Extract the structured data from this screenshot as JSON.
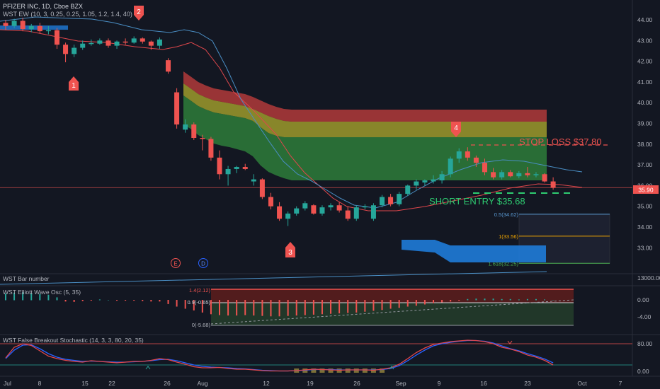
{
  "header": {
    "symbol": "PFIZER INC, 1D, Cboe BZX",
    "wst_ew_label": "WST EW (10, 3, 0.25, 0.25, 1.05, 1.2, 1.4, 40)"
  },
  "annotations": {
    "stop_loss": "STOP LOSS $37.80",
    "short_entry": "SHORT ENTRY $35.68",
    "wave_markers": [
      "1",
      "2",
      "3",
      "4"
    ],
    "event_e": "E",
    "event_d": "D",
    "fib_05": "0.5(34.62)",
    "fib_1": "1(33.56)",
    "fib_1618": "1.618(32.25)",
    "price_badge": "35.90"
  },
  "panels": {
    "bar_number": {
      "label": "WST Bar number",
      "axis_label": "13000.00"
    },
    "elliott": {
      "label": "WST Elliott Wave Osc (5, 35)",
      "ref_14": "1.4(2.12)",
      "ref_09": "0.9(-0.65)",
      "ref_0": "0(-5.68)",
      "axis": [
        "0.00",
        "-4.00"
      ]
    },
    "stochastic": {
      "label": "WST False Breakout Stochastic (14, 3, 3, 80, 20, 35)",
      "axis": [
        "80.00",
        "0.00"
      ]
    }
  },
  "xaxis": {
    "labels": [
      "Jul",
      "8",
      "15",
      "22",
      "26",
      "Aug",
      "12",
      "19",
      "26",
      "Sep",
      "9",
      "16",
      "23",
      "Oct",
      "7"
    ]
  },
  "colors": {
    "bull": "#26a69a",
    "bear": "#ef5350",
    "background": "#131722",
    "ma_red": "#e0474c",
    "ma_blue": "#4a8ec4"
  },
  "chart_data": {
    "type": "candlestick",
    "y_axis_ticks": [
      "44.00",
      "43.00",
      "42.00",
      "41.00",
      "40.00",
      "39.00",
      "38.00",
      "37.00",
      "36.00",
      "35.00",
      "34.00",
      "33.00"
    ],
    "ylim": [
      32.2,
      44.4
    ],
    "stop_loss": 37.8,
    "short_entry": 35.68,
    "last_price": 35.9,
    "fib_targets": [
      34.62,
      33.56,
      32.25
    ],
    "candles": [
      {
        "o": 43.85,
        "h": 44.0,
        "l": 43.5,
        "c": 43.7
      },
      {
        "o": 43.7,
        "h": 44.05,
        "l": 43.6,
        "c": 43.95
      },
      {
        "o": 43.95,
        "h": 44.1,
        "l": 43.45,
        "c": 43.55
      },
      {
        "o": 43.55,
        "h": 43.8,
        "l": 43.4,
        "c": 43.7
      },
      {
        "o": 43.7,
        "h": 43.85,
        "l": 43.35,
        "c": 43.45
      },
      {
        "o": 43.45,
        "h": 43.7,
        "l": 43.3,
        "c": 43.5
      },
      {
        "o": 43.5,
        "h": 43.6,
        "l": 42.6,
        "c": 42.8
      },
      {
        "o": 42.8,
        "h": 42.9,
        "l": 41.95,
        "c": 42.35
      },
      {
        "o": 42.35,
        "h": 42.8,
        "l": 42.2,
        "c": 42.65
      },
      {
        "o": 42.65,
        "h": 43.0,
        "l": 42.55,
        "c": 42.85
      },
      {
        "o": 42.85,
        "h": 43.05,
        "l": 42.75,
        "c": 42.88
      },
      {
        "o": 42.85,
        "h": 43.1,
        "l": 42.8,
        "c": 43.0
      },
      {
        "o": 43.0,
        "h": 43.1,
        "l": 42.65,
        "c": 42.75
      },
      {
        "o": 42.75,
        "h": 43.0,
        "l": 42.6,
        "c": 42.95
      },
      {
        "o": 42.95,
        "h": 43.1,
        "l": 42.8,
        "c": 42.9
      },
      {
        "o": 42.9,
        "h": 43.2,
        "l": 42.85,
        "c": 43.1
      },
      {
        "o": 43.1,
        "h": 43.15,
        "l": 42.85,
        "c": 42.95
      },
      {
        "o": 42.95,
        "h": 43.0,
        "l": 42.55,
        "c": 42.75
      },
      {
        "o": 42.75,
        "h": 43.15,
        "l": 42.6,
        "c": 43.05
      },
      {
        "o": 42.05,
        "h": 42.15,
        "l": 41.4,
        "c": 41.5
      },
      {
        "o": 40.5,
        "h": 40.7,
        "l": 38.75,
        "c": 38.95
      },
      {
        "o": 38.7,
        "h": 39.2,
        "l": 38.55,
        "c": 38.95
      },
      {
        "o": 38.95,
        "h": 39.05,
        "l": 38.2,
        "c": 38.3
      },
      {
        "o": 38.3,
        "h": 38.45,
        "l": 37.7,
        "c": 38.25
      },
      {
        "o": 38.25,
        "h": 38.35,
        "l": 37.2,
        "c": 37.35
      },
      {
        "o": 37.35,
        "h": 37.7,
        "l": 36.3,
        "c": 36.55
      },
      {
        "o": 36.55,
        "h": 36.95,
        "l": 36.0,
        "c": 36.8
      },
      {
        "o": 36.8,
        "h": 36.95,
        "l": 36.6,
        "c": 36.9
      },
      {
        "o": 36.9,
        "h": 37.05,
        "l": 36.75,
        "c": 36.8
      },
      {
        "o": 36.2,
        "h": 36.55,
        "l": 36.0,
        "c": 36.3
      },
      {
        "o": 36.3,
        "h": 36.35,
        "l": 35.35,
        "c": 35.45
      },
      {
        "o": 35.45,
        "h": 35.65,
        "l": 34.85,
        "c": 35.0
      },
      {
        "o": 35.0,
        "h": 35.2,
        "l": 34.3,
        "c": 34.4
      },
      {
        "o": 34.4,
        "h": 34.75,
        "l": 34.05,
        "c": 34.65
      },
      {
        "o": 34.65,
        "h": 35.0,
        "l": 34.55,
        "c": 34.9
      },
      {
        "o": 34.9,
        "h": 35.25,
        "l": 34.8,
        "c": 35.15
      },
      {
        "o": 35.05,
        "h": 35.1,
        "l": 34.6,
        "c": 34.65
      },
      {
        "o": 34.65,
        "h": 35.05,
        "l": 34.55,
        "c": 34.95
      },
      {
        "o": 34.95,
        "h": 35.15,
        "l": 34.8,
        "c": 35.05
      },
      {
        "o": 35.05,
        "h": 35.2,
        "l": 34.7,
        "c": 34.8
      },
      {
        "o": 34.8,
        "h": 35.0,
        "l": 34.3,
        "c": 34.4
      },
      {
        "o": 34.4,
        "h": 35.05,
        "l": 34.3,
        "c": 34.95
      },
      {
        "o": 34.95,
        "h": 35.1,
        "l": 34.85,
        "c": 35.0
      },
      {
        "o": 34.4,
        "h": 35.15,
        "l": 34.3,
        "c": 35.05
      },
      {
        "o": 35.05,
        "h": 35.55,
        "l": 34.95,
        "c": 35.45
      },
      {
        "o": 35.45,
        "h": 35.6,
        "l": 35.0,
        "c": 35.1
      },
      {
        "o": 35.1,
        "h": 35.7,
        "l": 35.0,
        "c": 35.6
      },
      {
        "o": 35.6,
        "h": 36.05,
        "l": 35.5,
        "c": 36.0
      },
      {
        "o": 36.0,
        "h": 36.3,
        "l": 35.8,
        "c": 36.2
      },
      {
        "o": 36.15,
        "h": 36.3,
        "l": 36.0,
        "c": 36.25
      },
      {
        "o": 36.2,
        "h": 36.5,
        "l": 36.1,
        "c": 36.3
      },
      {
        "o": 36.25,
        "h": 36.7,
        "l": 36.1,
        "c": 36.55
      },
      {
        "o": 36.55,
        "h": 37.4,
        "l": 36.4,
        "c": 37.3
      },
      {
        "o": 37.3,
        "h": 37.8,
        "l": 37.1,
        "c": 37.65
      },
      {
        "o": 37.65,
        "h": 37.85,
        "l": 37.2,
        "c": 37.35
      },
      {
        "o": 37.35,
        "h": 37.45,
        "l": 36.9,
        "c": 37.1
      },
      {
        "o": 37.1,
        "h": 37.3,
        "l": 36.5,
        "c": 36.65
      },
      {
        "o": 36.65,
        "h": 36.85,
        "l": 36.3,
        "c": 36.4
      },
      {
        "o": 36.4,
        "h": 36.75,
        "l": 36.3,
        "c": 36.65
      },
      {
        "o": 36.65,
        "h": 36.75,
        "l": 36.4,
        "c": 36.45
      },
      {
        "o": 36.45,
        "h": 36.7,
        "l": 36.35,
        "c": 36.6
      },
      {
        "o": 36.6,
        "h": 36.9,
        "l": 36.4,
        "c": 36.5
      },
      {
        "o": 36.5,
        "h": 36.65,
        "l": 36.4,
        "c": 36.55
      },
      {
        "o": 36.55,
        "h": 36.6,
        "l": 36.15,
        "c": 36.2
      },
      {
        "o": 36.2,
        "h": 36.4,
        "l": 35.8,
        "c": 35.9
      }
    ],
    "elliott_osc": [
      1.5,
      1.7,
      1.8,
      1.6,
      1.4,
      1.2,
      0.6,
      -0.3,
      -0.4,
      -0.2,
      -0.1,
      0.1,
      0.0,
      -0.1,
      -0.1,
      -0.1,
      -0.2,
      -0.3,
      -0.3,
      -0.9,
      -1.5,
      -2.0,
      -2.4,
      -2.9,
      -3.3,
      -3.5,
      -3.6,
      -3.6,
      -3.5,
      -3.6,
      -3.7,
      -3.8,
      -3.8,
      -3.7,
      -3.6,
      -3.5,
      -3.4,
      -3.3,
      -3.2,
      -3.1,
      -3.0,
      -2.9,
      -2.7,
      -2.5,
      -2.3,
      -2.0,
      -1.8,
      -1.5,
      -1.3,
      -1.0,
      -0.7,
      -0.5,
      -0.3,
      -0.1,
      0.2,
      0.3,
      0.3,
      0.3,
      0.2,
      0.2,
      0.1,
      0.2,
      0.2,
      0.1,
      0.0
    ],
    "stoch_k": [
      40,
      70,
      80,
      75,
      60,
      45,
      38,
      33,
      30,
      28,
      32,
      30,
      28,
      26,
      28,
      30,
      30,
      33,
      38,
      35,
      28,
      22,
      15,
      12,
      12,
      13,
      10,
      8,
      8,
      6,
      4,
      3,
      3,
      3,
      4,
      6,
      8,
      7,
      6,
      5,
      6,
      6,
      6,
      5,
      8,
      12,
      22,
      38,
      55,
      68,
      78,
      82,
      86,
      88,
      90,
      89,
      86,
      80,
      70,
      65,
      58,
      48,
      42,
      33,
      20
    ],
    "stoch_d": [
      38,
      62,
      76,
      77,
      66,
      52,
      42,
      36,
      33,
      30,
      31,
      30,
      29,
      28,
      28,
      29,
      30,
      32,
      35,
      36,
      32,
      26,
      20,
      16,
      14,
      13,
      12,
      10,
      9,
      7,
      5,
      4,
      3,
      3,
      4,
      5,
      7,
      7,
      7,
      6,
      6,
      6,
      6,
      6,
      7,
      10,
      18,
      32,
      48,
      62,
      74,
      80,
      84,
      87,
      89,
      89,
      87,
      82,
      74,
      66,
      60,
      52,
      45,
      37,
      26
    ]
  }
}
